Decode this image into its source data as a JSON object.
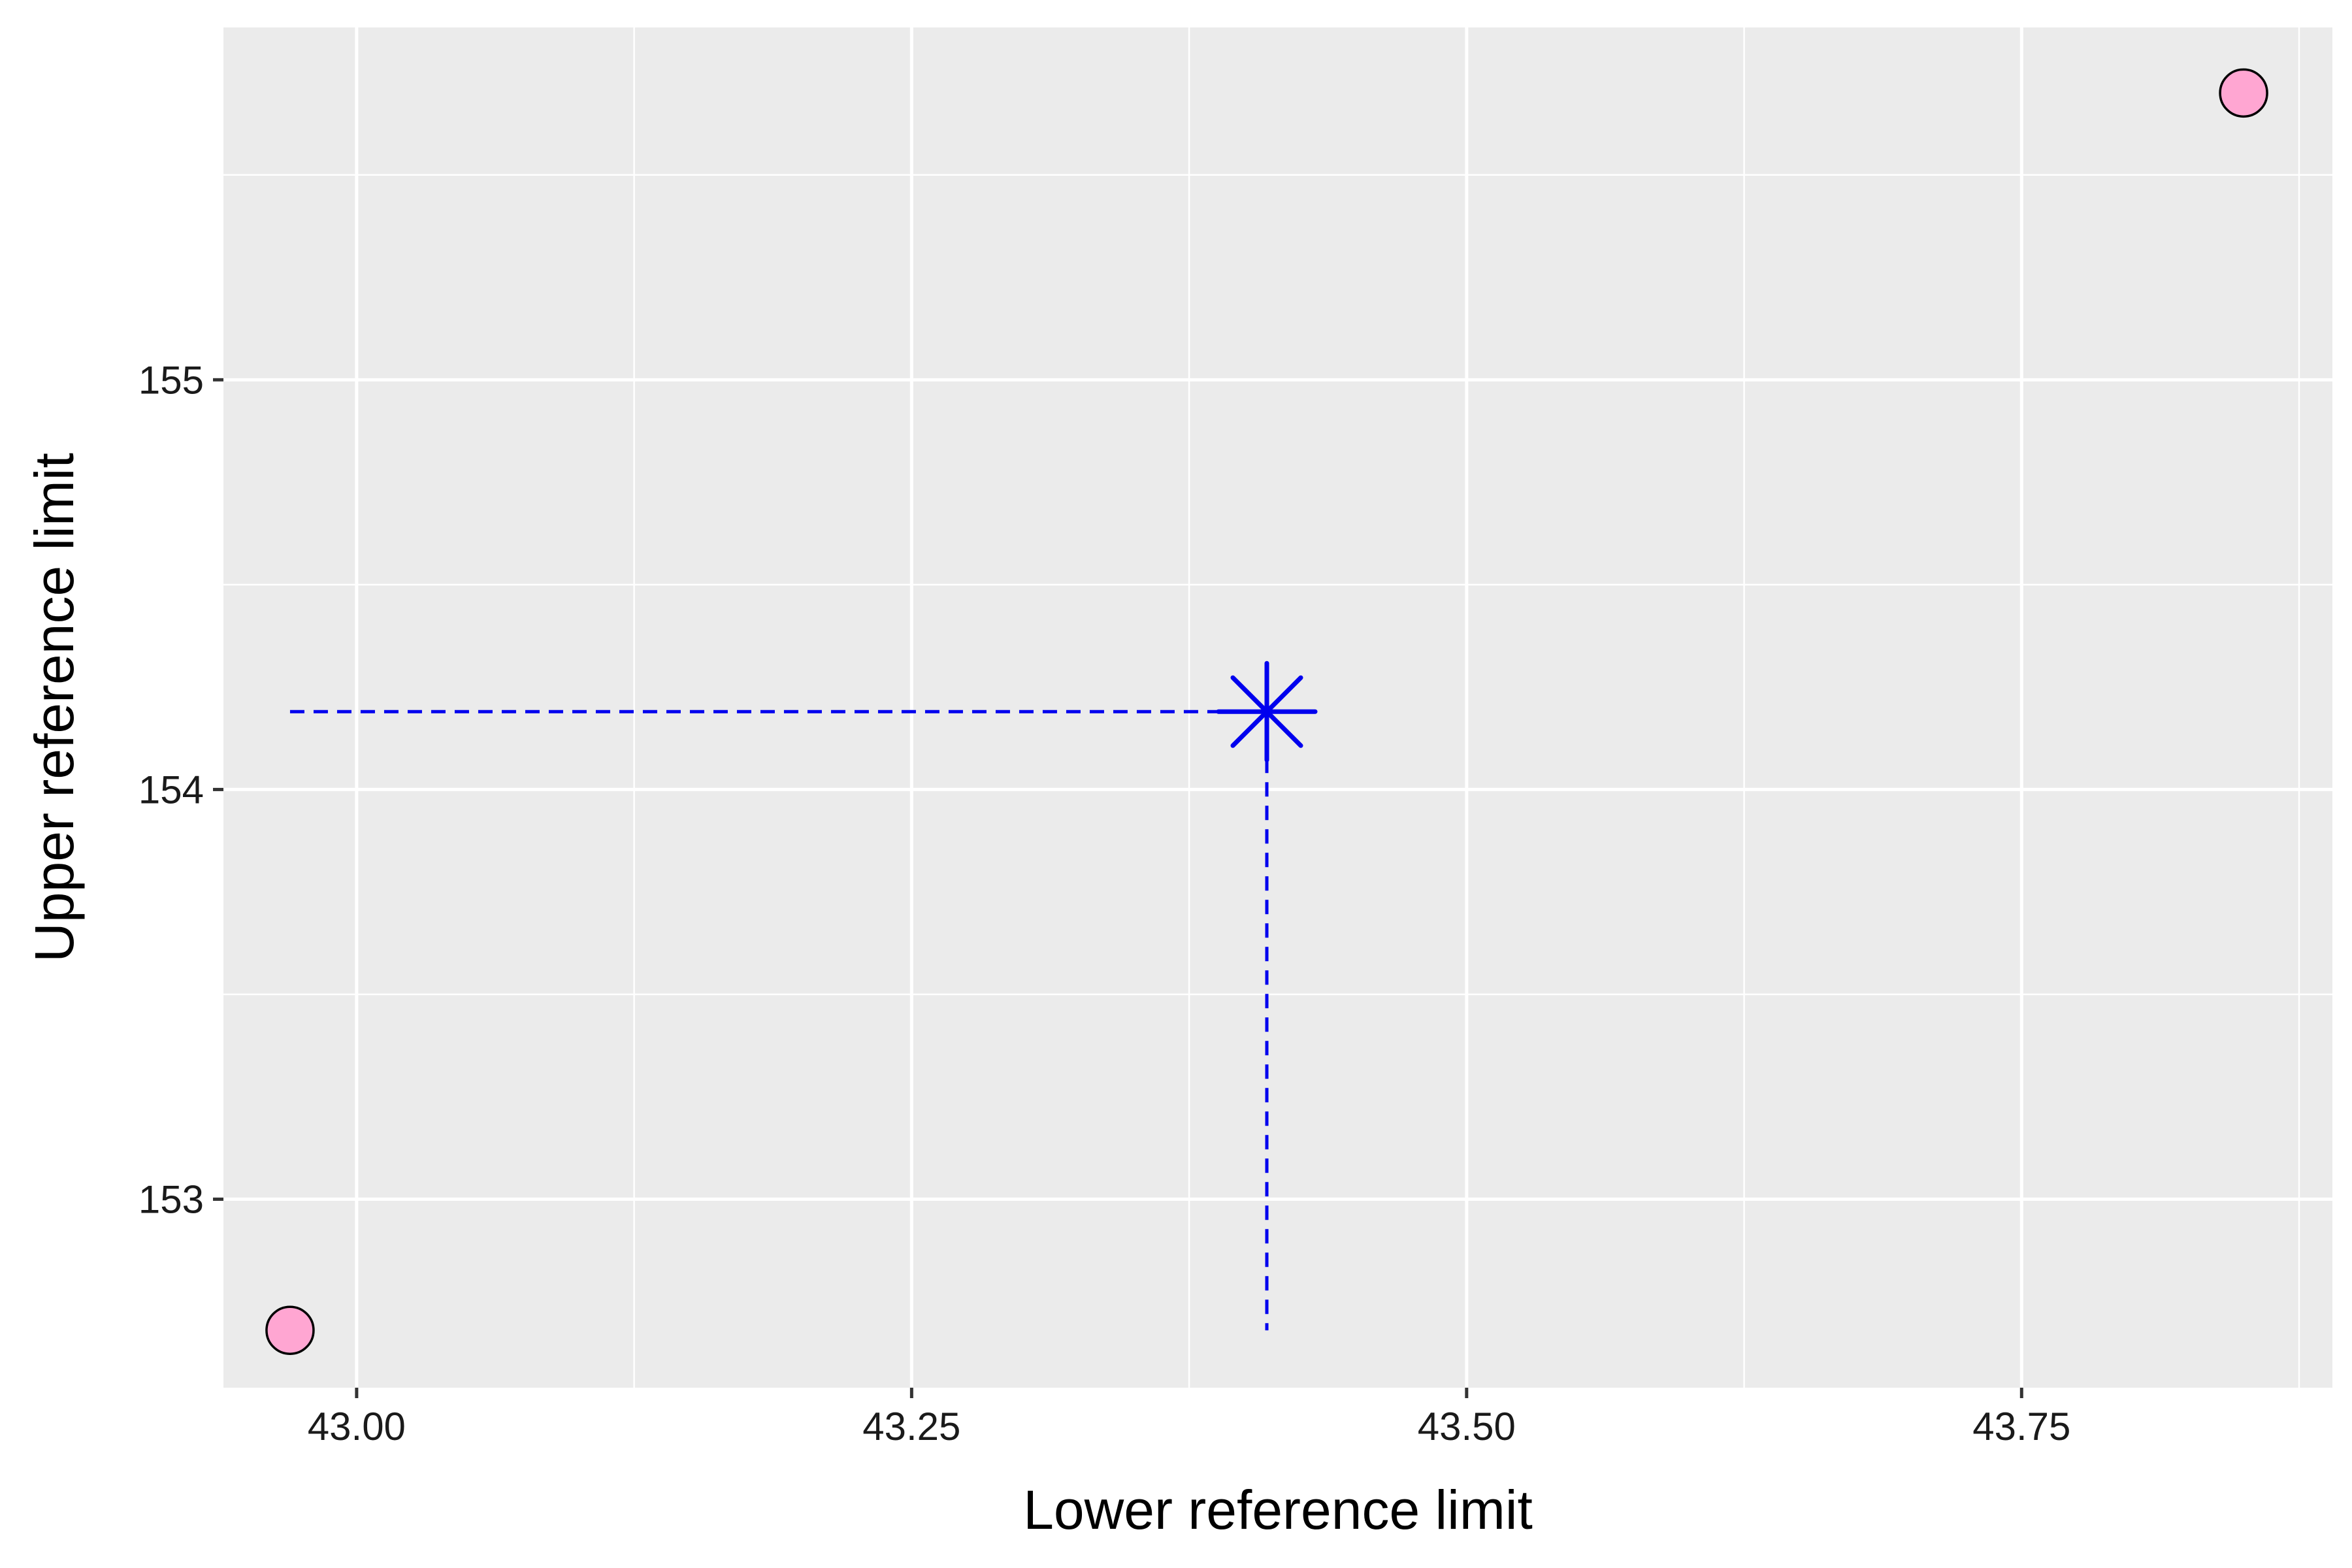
{
  "chart_data": {
    "type": "scatter",
    "title": "",
    "xlabel": "Lower reference limit",
    "ylabel": "Upper reference limit",
    "xlim": [
      42.94,
      43.89
    ],
    "ylim": [
      152.54,
      155.86
    ],
    "x_major_ticks": [
      43.0,
      43.25,
      43.5,
      43.75
    ],
    "x_tick_labels": [
      "43.00",
      "43.25",
      "43.50",
      "43.75"
    ],
    "x_minor_ticks": [
      43.125,
      43.375,
      43.625,
      43.875
    ],
    "y_major_ticks": [
      153,
      154,
      155
    ],
    "y_tick_labels": [
      "153",
      "154",
      "155"
    ],
    "y_minor_ticks": [
      153.5,
      154.5,
      155.5
    ],
    "grid": true,
    "points": [
      {
        "x": 42.97,
        "y": 152.68
      },
      {
        "x": 43.85,
        "y": 155.7
      }
    ],
    "highlight": {
      "x": 43.41,
      "y": 154.19
    },
    "colors": {
      "panel": "#ebebeb",
      "grid": "#ffffff",
      "point_fill": "#ffa6d2",
      "point_stroke": "#000000",
      "highlight": "#0000ee",
      "tick": "#333333"
    }
  }
}
